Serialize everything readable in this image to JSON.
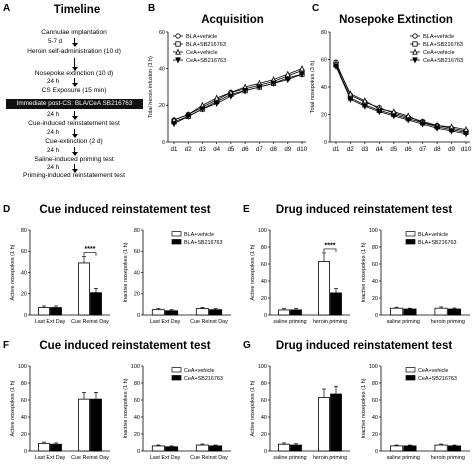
{
  "panels": {
    "a": {
      "letter": "A",
      "title": "Timeline",
      "steps": [
        "Cannulae implantation",
        "Heroin self-administration (10 d)",
        "Nosepoke extinction (10 d)",
        "CS Exposure (15 min)",
        "Cue-induced reinstatement test",
        "Cue-extinction (2 d)",
        "Saline-induced priming test",
        "Priming-induced reinstatement test"
      ],
      "highlight": "Immediate post-CS: BLA/CeA SB216763",
      "gaps": [
        "5-7 d",
        "24 h",
        "24 h",
        "24 h",
        "24 h",
        "24 h",
        "24 h"
      ]
    },
    "b": {
      "letter": "B",
      "title": "Acquisition"
    },
    "c": {
      "letter": "C",
      "title": "Nosepoke Extinction"
    },
    "d": {
      "letter": "D",
      "title": "Cue induced reinstatement test"
    },
    "e": {
      "letter": "E",
      "title": "Drug induced reinstatement test"
    },
    "f": {
      "letter": "F",
      "title": "Cue induced reinstatement test"
    },
    "g": {
      "letter": "G",
      "title": "Drug induced reinstatement test"
    }
  },
  "chart_data": [
    {
      "id": "B",
      "type": "line",
      "title": "Acquisition",
      "xlabel": "",
      "ylabel": "Total heroin infusion (3 h)",
      "categories": [
        "d1",
        "d2",
        "d3",
        "d4",
        "d5",
        "d6",
        "d7",
        "d8",
        "d9",
        "d10"
      ],
      "ylim": [
        0,
        60
      ],
      "yticks": [
        0,
        20,
        40,
        60
      ],
      "legend_position": "top-left",
      "series": [
        {
          "name": "BLA+vehicle",
          "marker": "circle-open",
          "values": [
            12,
            15,
            19,
            23,
            27,
            29,
            31,
            33,
            36,
            39
          ]
        },
        {
          "name": "BLA+SB216763",
          "marker": "square-open",
          "values": [
            11,
            14,
            18,
            22,
            26,
            28,
            30,
            32,
            35,
            37
          ]
        },
        {
          "name": "CeA+vehicle",
          "marker": "triangle-open",
          "values": [
            12,
            15,
            20,
            24,
            27,
            30,
            32,
            34,
            37,
            40
          ]
        },
        {
          "name": "CeA+SB216763",
          "marker": "triangle-down",
          "values": [
            10,
            14,
            18,
            21,
            25,
            28,
            30,
            32,
            34,
            37
          ]
        }
      ]
    },
    {
      "id": "C",
      "type": "line",
      "title": "Nosepoke Extinction",
      "xlabel": "",
      "ylabel": "Total nosepokes (3 h)",
      "categories": [
        "d1",
        "d2",
        "d3",
        "d4",
        "d5",
        "d6",
        "d7",
        "d8",
        "d9",
        "d10"
      ],
      "ylim": [
        0,
        80
      ],
      "yticks": [
        0,
        20,
        40,
        60,
        80
      ],
      "legend_position": "top-right",
      "series": [
        {
          "name": "BLA+vehicle",
          "marker": "circle-open",
          "values": [
            58,
            34,
            29,
            25,
            21,
            18,
            15,
            12,
            10,
            8
          ]
        },
        {
          "name": "BLA+SB216763",
          "marker": "square-open",
          "values": [
            56,
            32,
            27,
            23,
            20,
            17,
            14,
            11,
            9,
            7
          ]
        },
        {
          "name": "CeA+vehicle",
          "marker": "triangle-open",
          "values": [
            57,
            35,
            30,
            24,
            22,
            19,
            14,
            12,
            11,
            9
          ]
        },
        {
          "name": "CeA+SB216763",
          "marker": "triangle-down",
          "values": [
            55,
            31,
            26,
            22,
            19,
            16,
            13,
            10,
            8,
            6
          ]
        }
      ]
    },
    {
      "id": "D-active",
      "type": "bar",
      "ylabel": "Active nosepokes (1 h)",
      "categories": [
        "Last Ext Day",
        "Cue Reinst Day"
      ],
      "ylim": [
        0,
        80
      ],
      "yticks": [
        0,
        20,
        40,
        60,
        80
      ],
      "series": [
        {
          "name": "BLA+vehicle",
          "style": "open",
          "values": [
            7,
            49
          ],
          "errors": [
            1.5,
            6
          ]
        },
        {
          "name": "BLA+SB216763",
          "style": "filled",
          "values": [
            7,
            21
          ],
          "errors": [
            1.5,
            4
          ]
        }
      ],
      "significance": {
        "label": "****",
        "category": 1
      }
    },
    {
      "id": "D-inactive",
      "type": "bar",
      "ylabel": "Inactive nosepokes (1 h)",
      "categories": [
        "Last Ext Day",
        "Cue Reinst Day"
      ],
      "ylim": [
        0,
        80
      ],
      "yticks": [
        0,
        20,
        40,
        60,
        80
      ],
      "legend_position": "top-right",
      "series": [
        {
          "name": "BLA+vehicle",
          "style": "open",
          "values": [
            5,
            6
          ],
          "errors": [
            1,
            1.2
          ]
        },
        {
          "name": "BLA+SB216763",
          "style": "filled",
          "values": [
            4,
            5
          ],
          "errors": [
            1,
            1
          ]
        }
      ]
    },
    {
      "id": "E-active",
      "type": "bar",
      "ylabel": "Active nosepokes (1 h)",
      "categories": [
        "saline priming",
        "heroin priming"
      ],
      "ylim": [
        0,
        100
      ],
      "yticks": [
        0,
        20,
        40,
        60,
        80,
        100
      ],
      "series": [
        {
          "name": "BLA+vehicle",
          "style": "open",
          "values": [
            6,
            63
          ],
          "errors": [
            1.5,
            10
          ]
        },
        {
          "name": "BLA+SB216763",
          "style": "filled",
          "values": [
            6,
            26
          ],
          "errors": [
            1.5,
            5
          ]
        }
      ],
      "significance": {
        "label": "****",
        "category": 1
      }
    },
    {
      "id": "E-inactive",
      "type": "bar",
      "ylabel": "Inactive nosepokes (1 h)",
      "categories": [
        "saline priming",
        "heroin priming"
      ],
      "ylim": [
        0,
        100
      ],
      "yticks": [
        0,
        20,
        40,
        60,
        80,
        100
      ],
      "legend_position": "top-right",
      "series": [
        {
          "name": "BLA+vehicle",
          "style": "open",
          "values": [
            8,
            8
          ],
          "errors": [
            1.2,
            1.5
          ]
        },
        {
          "name": "BLA+SB216763",
          "style": "filled",
          "values": [
            7,
            7
          ],
          "errors": [
            1,
            1.2
          ]
        }
      ]
    },
    {
      "id": "F-active",
      "type": "bar",
      "ylabel": "Active nosepokes (1 h)",
      "categories": [
        "Last Ext Day",
        "Cue Reinst Day"
      ],
      "ylim": [
        0,
        100
      ],
      "yticks": [
        0,
        20,
        40,
        60,
        80,
        100
      ],
      "series": [
        {
          "name": "CeA+vehicle",
          "style": "open",
          "values": [
            9,
            61
          ],
          "errors": [
            1.5,
            8
          ]
        },
        {
          "name": "CeA+SB216763",
          "style": "filled",
          "values": [
            8,
            61
          ],
          "errors": [
            1.5,
            8
          ]
        }
      ]
    },
    {
      "id": "F-inactive",
      "type": "bar",
      "ylabel": "Inactive nosepokes (1 h)",
      "categories": [
        "Last Ext Day",
        "Cue Reinst Day"
      ],
      "ylim": [
        0,
        100
      ],
      "yticks": [
        0,
        20,
        40,
        60,
        80,
        100
      ],
      "legend_position": "top-right",
      "series": [
        {
          "name": "CeA+vehicle",
          "style": "open",
          "values": [
            6,
            7
          ],
          "errors": [
            1,
            1.2
          ]
        },
        {
          "name": "CeA+SB216763",
          "style": "filled",
          "values": [
            5,
            6
          ],
          "errors": [
            1,
            1
          ]
        }
      ]
    },
    {
      "id": "G-active",
      "type": "bar",
      "ylabel": "Active nosepokes (1 h)",
      "categories": [
        "saline priming",
        "heroin priming"
      ],
      "ylim": [
        0,
        100
      ],
      "yticks": [
        0,
        20,
        40,
        60,
        80,
        100
      ],
      "series": [
        {
          "name": "CeA+vehicle",
          "style": "open",
          "values": [
            8,
            63
          ],
          "errors": [
            1.5,
            10
          ]
        },
        {
          "name": "CeA+SB216763",
          "style": "filled",
          "values": [
            7,
            67
          ],
          "errors": [
            1.5,
            9
          ]
        }
      ]
    },
    {
      "id": "G-inactive",
      "type": "bar",
      "ylabel": "Inactive nosepokes (1 h)",
      "categories": [
        "saline priming",
        "heroin priming"
      ],
      "ylim": [
        0,
        100
      ],
      "yticks": [
        0,
        20,
        40,
        60,
        80,
        100
      ],
      "legend_position": "top-right",
      "series": [
        {
          "name": "CeA+vehicle",
          "style": "open",
          "values": [
            6,
            7
          ],
          "errors": [
            1,
            1.2
          ]
        },
        {
          "name": "CeA+SB216763",
          "style": "filled",
          "values": [
            6,
            6
          ],
          "errors": [
            1,
            1
          ]
        }
      ]
    }
  ]
}
